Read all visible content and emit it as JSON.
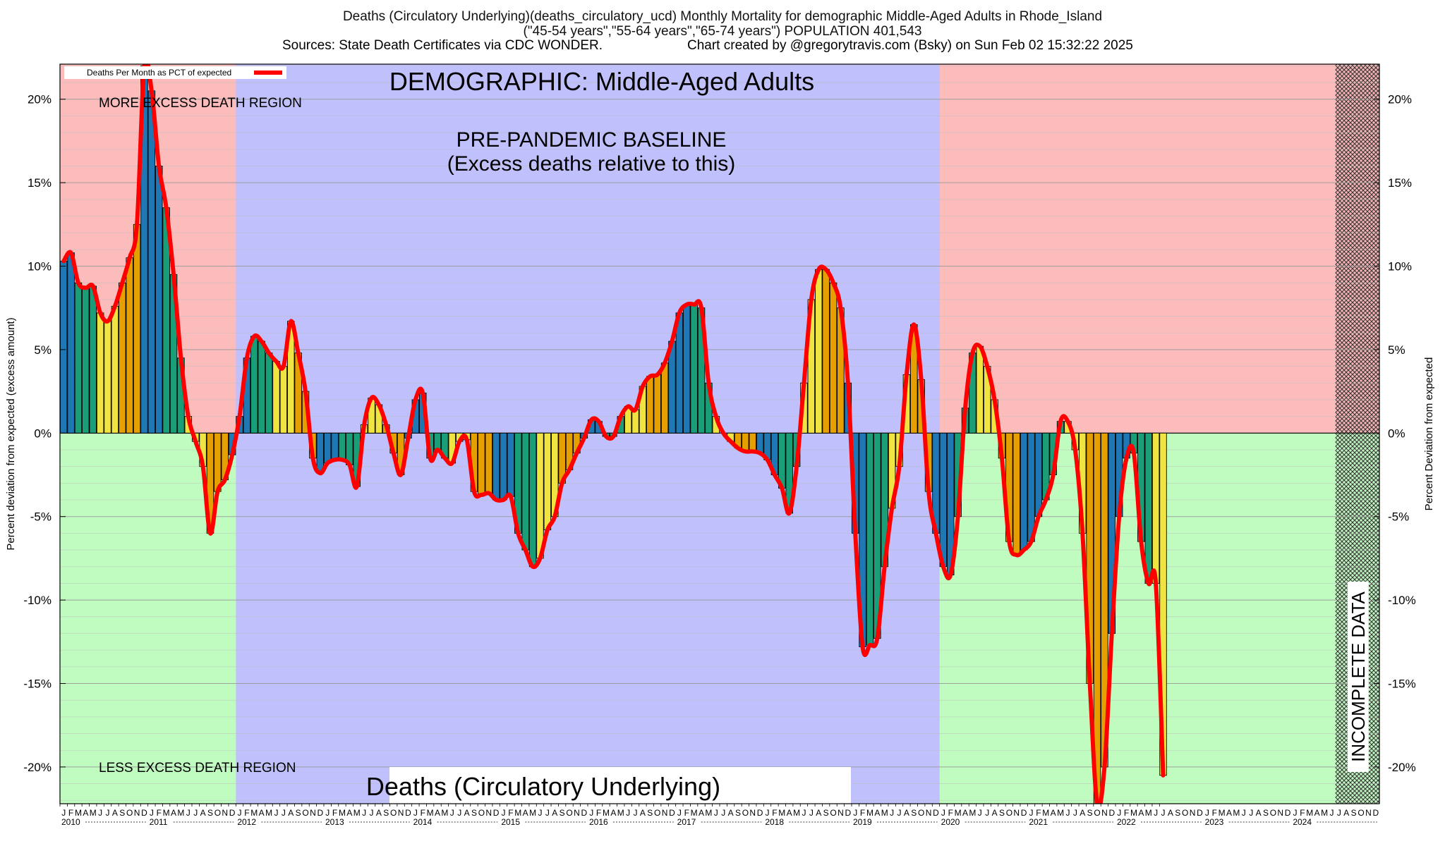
{
  "header": {
    "title": "Deaths (Circulatory Underlying)(deaths_circulatory_ucd) Monthly Mortality for demographic Middle-Aged Adults in Rhode_Island",
    "subtitle": "(\"45-54 years\",\"55-64 years\",\"65-74 years\") POPULATION 401,543",
    "sources": "Sources: State Death Certificates via CDC WONDER.",
    "credit": "Chart created by @gregorytravis.com (Bsky) on Sun Feb 02 15:32:22 2025"
  },
  "chart_data": {
    "type": "bar",
    "ylabel_left": "Percent deviation from expected (excess amount)",
    "ylabel_right": "Percent Deviation from expected",
    "legend_label": "Deaths Per Month as PCT of expected",
    "legend_position": "top-left",
    "ylim": [
      -22.2,
      22.1
    ],
    "yticks": [
      -20,
      -15,
      -10,
      -5,
      0,
      5,
      10,
      15,
      20
    ],
    "ytick_labels": [
      "-20%",
      "-15%",
      "-10%",
      "-5%",
      "0%",
      "5%",
      "10%",
      "15%",
      "20%"
    ],
    "start": "2010-01",
    "years": [
      "2010",
      "2011",
      "2012",
      "2013",
      "2014",
      "2015",
      "2016",
      "2017",
      "2018",
      "2019",
      "2020",
      "2021",
      "2022",
      "2023",
      "2024"
    ],
    "month_letters": [
      "J",
      "F",
      "M",
      "A",
      "M",
      "J",
      "J",
      "A",
      "S",
      "O",
      "N",
      "D"
    ],
    "season_colors": [
      "#1f77b4",
      "#1a9e77",
      "#f0e442",
      "#e69f00"
    ],
    "line_color": "#ff0000",
    "grid": true,
    "regions": {
      "excess": "MORE EXCESS DEATH REGION",
      "less": "LESS EXCESS DEATH REGION",
      "baseline_1": "PRE-PANDEMIC BASELINE",
      "baseline_2": "(Excess deaths relative to this)",
      "baseline_range": [
        "2012-01",
        "2019-12"
      ],
      "incomplete": "INCOMPLETE DATA",
      "incomplete_range": [
        "2024-07",
        "2024-12"
      ],
      "demographic": "DEMOGRAPHIC: Middle-Aged Adults",
      "metric": "Deaths (Circulatory Underlying)"
    },
    "values": [
      10.3,
      10.8,
      9.0,
      8.7,
      8.8,
      7.2,
      6.7,
      7.6,
      9.0,
      10.5,
      12.5,
      22.0,
      20.5,
      16.0,
      13.5,
      9.5,
      4.5,
      1.0,
      -0.5,
      -2.0,
      -6.0,
      -3.5,
      -2.8,
      -1.3,
      1.0,
      4.5,
      5.8,
      5.5,
      4.8,
      4.3,
      4.0,
      6.7,
      4.8,
      2.5,
      -1.5,
      -2.4,
      -1.8,
      -1.6,
      -1.6,
      -1.9,
      -3.2,
      0.5,
      2.1,
      1.7,
      0.5,
      -1.2,
      -2.5,
      -0.3,
      2.0,
      2.4,
      -1.5,
      -1.0,
      -1.5,
      -1.8,
      -0.5,
      -0.4,
      -3.5,
      -3.7,
      -3.6,
      -4.0,
      -4.0,
      -3.8,
      -6.0,
      -7.0,
      -8.0,
      -7.5,
      -5.8,
      -5.0,
      -3.0,
      -2.2,
      -1.2,
      -0.3,
      0.8,
      0.7,
      -0.2,
      -0.2,
      1.0,
      1.6,
      1.4,
      2.8,
      3.4,
      3.5,
      4.2,
      5.5,
      7.2,
      7.7,
      7.7,
      7.5,
      3.0,
      1.0,
      0.0,
      -0.5,
      -0.9,
      -1.1,
      -1.1,
      -1.2,
      -1.6,
      -2.5,
      -3.3,
      -4.8,
      -2.0,
      3.0,
      8.0,
      9.8,
      9.8,
      9.0,
      7.5,
      3.0,
      -6.0,
      -12.8,
      -12.7,
      -12.3,
      -8.0,
      -4.5,
      -2.0,
      3.5,
      6.5,
      3.2,
      -3.5,
      -6.0,
      -8.0,
      -8.5,
      -5.0,
      1.5,
      4.8,
      5.2,
      4.0,
      2.0,
      -1.5,
      -6.5,
      -7.3,
      -7.0,
      -6.5,
      -5.0,
      -4.0,
      -2.5,
      0.7,
      0.7,
      -1.0,
      -6.0,
      -15.0,
      -22.2,
      -20.0,
      -12.0,
      -5.0,
      -1.5,
      -1.2,
      -6.5,
      -9.0,
      -9.0,
      -20.5
    ]
  }
}
